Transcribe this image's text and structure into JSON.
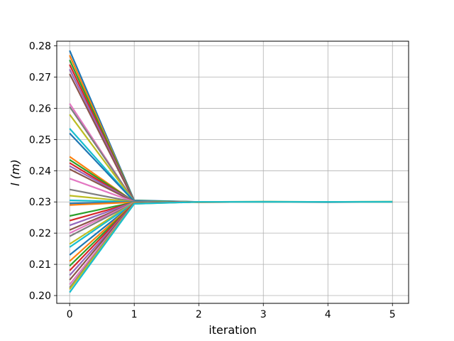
{
  "chart_data": {
    "type": "line",
    "title": "",
    "xlabel": "iteration",
    "ylabel": "l (m)",
    "xlim": [
      -0.2,
      5.25
    ],
    "ylim": [
      0.1975,
      0.2815
    ],
    "x": [
      0,
      1,
      2,
      3,
      4,
      5
    ],
    "xticks": [
      "0",
      "1",
      "2",
      "3",
      "4",
      "5"
    ],
    "yticks": [
      "0.20",
      "0.21",
      "0.22",
      "0.23",
      "0.24",
      "0.25",
      "0.26",
      "0.27",
      "0.28"
    ],
    "grid": true,
    "legend": "none",
    "colors": [
      "#1f77b4",
      "#ff7f0e",
      "#2ca02c",
      "#d62728",
      "#9467bd",
      "#8c564b",
      "#e377c2",
      "#7f7f7f",
      "#bcbd22",
      "#17becf"
    ],
    "series": [
      {
        "values": [
          0.2785,
          0.2305,
          0.23,
          0.23,
          0.23,
          0.23
        ]
      },
      {
        "values": [
          0.277,
          0.2303,
          0.2299,
          0.23,
          0.23,
          0.23
        ]
      },
      {
        "values": [
          0.2755,
          0.2304,
          0.23,
          0.2301,
          0.23,
          0.2301
        ]
      },
      {
        "values": [
          0.274,
          0.2302,
          0.23,
          0.23,
          0.23,
          0.23
        ]
      },
      {
        "values": [
          0.2725,
          0.2303,
          0.2299,
          0.23,
          0.23,
          0.23
        ]
      },
      {
        "values": [
          0.271,
          0.2302,
          0.23,
          0.23,
          0.23,
          0.23
        ]
      },
      {
        "values": [
          0.2615,
          0.2301,
          0.23,
          0.23,
          0.23,
          0.23
        ]
      },
      {
        "values": [
          0.2605,
          0.2302,
          0.23,
          0.23,
          0.23,
          0.23
        ]
      },
      {
        "values": [
          0.258,
          0.2301,
          0.2299,
          0.23,
          0.23,
          0.23
        ]
      },
      {
        "values": [
          0.2535,
          0.2302,
          0.23,
          0.23,
          0.23,
          0.23
        ]
      },
      {
        "values": [
          0.252,
          0.2301,
          0.23,
          0.23,
          0.23,
          0.23
        ]
      },
      {
        "values": [
          0.2445,
          0.23,
          0.23,
          0.23,
          0.23,
          0.23
        ]
      },
      {
        "values": [
          0.2435,
          0.2301,
          0.23,
          0.23,
          0.23,
          0.23
        ]
      },
      {
        "values": [
          0.2425,
          0.23,
          0.23,
          0.23,
          0.23,
          0.23
        ]
      },
      {
        "values": [
          0.2415,
          0.2301,
          0.23,
          0.23,
          0.23,
          0.23
        ]
      },
      {
        "values": [
          0.2405,
          0.23,
          0.23,
          0.23,
          0.23,
          0.23
        ]
      },
      {
        "values": [
          0.2375,
          0.23,
          0.23,
          0.23,
          0.23,
          0.23
        ]
      },
      {
        "values": [
          0.234,
          0.23,
          0.23,
          0.23,
          0.23,
          0.23
        ]
      },
      {
        "values": [
          0.232,
          0.23,
          0.23,
          0.23,
          0.23,
          0.23
        ]
      },
      {
        "values": [
          0.2305,
          0.23,
          0.23,
          0.23,
          0.23,
          0.23
        ]
      },
      {
        "values": [
          0.2295,
          0.23,
          0.23,
          0.23,
          0.23,
          0.23
        ]
      },
      {
        "values": [
          0.229,
          0.2299,
          0.23,
          0.23,
          0.23,
          0.23
        ]
      },
      {
        "values": [
          0.2255,
          0.2299,
          0.23,
          0.23,
          0.23,
          0.23
        ]
      },
      {
        "values": [
          0.224,
          0.2298,
          0.23,
          0.23,
          0.23,
          0.23
        ]
      },
      {
        "values": [
          0.2225,
          0.2299,
          0.23,
          0.23,
          0.23,
          0.23
        ]
      },
      {
        "values": [
          0.221,
          0.2298,
          0.23,
          0.23,
          0.23,
          0.23
        ]
      },
      {
        "values": [
          0.22,
          0.2298,
          0.23,
          0.23,
          0.23,
          0.23
        ]
      },
      {
        "values": [
          0.219,
          0.2297,
          0.23,
          0.23,
          0.23,
          0.23
        ]
      },
      {
        "values": [
          0.2165,
          0.2298,
          0.23,
          0.23,
          0.23,
          0.23
        ]
      },
      {
        "values": [
          0.2155,
          0.2297,
          0.23,
          0.23,
          0.23,
          0.23
        ]
      },
      {
        "values": [
          0.213,
          0.2296,
          0.23,
          0.23,
          0.2299,
          0.23
        ]
      },
      {
        "values": [
          0.211,
          0.2297,
          0.23,
          0.23,
          0.23,
          0.23
        ]
      },
      {
        "values": [
          0.2095,
          0.2296,
          0.23,
          0.23,
          0.23,
          0.23
        ]
      },
      {
        "values": [
          0.208,
          0.2296,
          0.23,
          0.23,
          0.23,
          0.23
        ]
      },
      {
        "values": [
          0.2065,
          0.2295,
          0.23,
          0.23,
          0.23,
          0.23
        ]
      },
      {
        "values": [
          0.205,
          0.2296,
          0.23,
          0.23,
          0.23,
          0.23
        ]
      },
      {
        "values": [
          0.2035,
          0.2295,
          0.23,
          0.23,
          0.23,
          0.23
        ]
      },
      {
        "values": [
          0.2025,
          0.2295,
          0.23,
          0.23,
          0.23,
          0.23
        ]
      },
      {
        "values": [
          0.202,
          0.2294,
          0.23,
          0.23,
          0.23,
          0.23
        ]
      },
      {
        "values": [
          0.201,
          0.2294,
          0.23,
          0.23,
          0.23,
          0.23
        ]
      }
    ]
  }
}
